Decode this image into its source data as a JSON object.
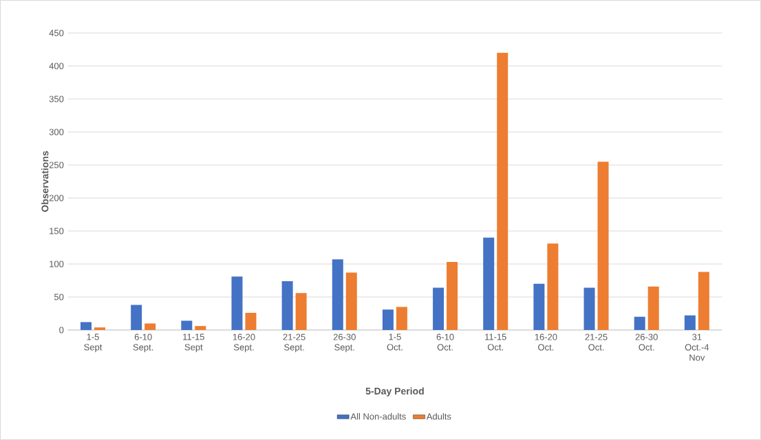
{
  "chart_data": {
    "type": "bar",
    "xlabel": "5-Day Period",
    "ylabel": "Observations",
    "categories": [
      "1-5 Sept",
      "6-10 Sept.",
      "11-15 Sept",
      "16-20 Sept.",
      "21-25 Sept.",
      "26-30 Sept.",
      "1-5 Oct.",
      "6-10 Oct.",
      "11-15 Oct.",
      "16-20 Oct.",
      "21-25 Oct.",
      "26-30 Oct.",
      "31 Oct.-4 Nov"
    ],
    "series": [
      {
        "name": "All Non-adults",
        "color": "#4472c4",
        "values": [
          12,
          38,
          14,
          81,
          74,
          107,
          31,
          64,
          140,
          70,
          64,
          20,
          22
        ]
      },
      {
        "name": "Adults",
        "color": "#ed7d31",
        "values": [
          4,
          10,
          6,
          26,
          56,
          87,
          35,
          103,
          420,
          131,
          255,
          66,
          88
        ]
      }
    ],
    "ylim": [
      0,
      450
    ],
    "yticks": [
      0,
      50,
      100,
      150,
      200,
      250,
      300,
      350,
      400,
      450
    ],
    "grid": "y",
    "legend": "bottom"
  }
}
